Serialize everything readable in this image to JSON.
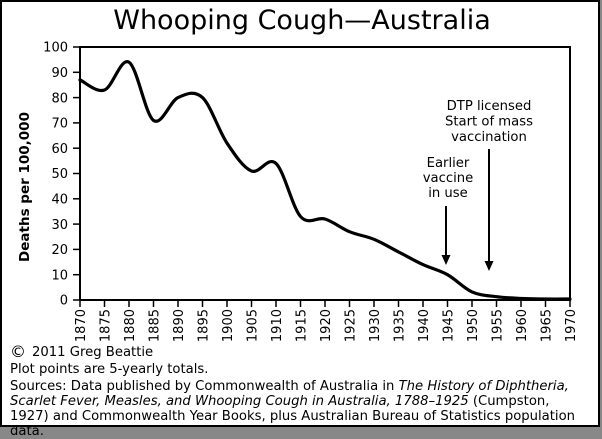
{
  "title": "Whooping Cough—Australia",
  "chart_data": {
    "type": "line",
    "title": "Whooping Cough—Australia",
    "xlabel": "",
    "ylabel": "Deaths per 100,000",
    "xlim": [
      1870,
      1970
    ],
    "ylim": [
      0,
      100
    ],
    "grid": false,
    "legend": "none",
    "line_color": "#000000",
    "background": "#ffffff",
    "x": [
      1870,
      1875,
      1880,
      1885,
      1890,
      1895,
      1900,
      1905,
      1910,
      1915,
      1920,
      1925,
      1930,
      1935,
      1940,
      1945,
      1950,
      1955,
      1960,
      1965,
      1970
    ],
    "values": [
      87,
      83,
      94,
      71,
      80,
      80,
      62,
      51,
      54,
      33,
      32,
      27,
      24,
      19,
      14,
      10,
      3.2,
      1.3,
      0.6,
      0.4,
      0.4
    ],
    "y_ticks": [
      0,
      10,
      20,
      30,
      40,
      50,
      60,
      70,
      80,
      90,
      100
    ],
    "annotations": [
      {
        "name": "dtp-licensed",
        "lines": [
          "DTP licensed",
          "Start of mass",
          "vaccination"
        ],
        "x": 487,
        "first_baseline": 108,
        "line_step": 15.5,
        "arrow_x": 487,
        "arrow_y1": 147,
        "arrow_y2": 269
      },
      {
        "name": "earlier-vaccine",
        "lines": [
          "Earlier",
          "vaccine",
          "in use"
        ],
        "x": 446,
        "first_baseline": 165,
        "line_step": 15,
        "arrow_x": 444,
        "arrow_y1": 204,
        "arrow_y2": 263
      }
    ]
  },
  "footer": {
    "copyright_symbol": "©",
    "copyright_text": "2011 Greg Beattie",
    "note": "Plot points are 5-yearly totals.",
    "sources_segments": [
      {
        "text": "Sources: Data published by Commonwealth of Australia in ",
        "italic": false
      },
      {
        "text": "The History of Diphtheria, Scarlet Fever, Measles, and Whooping Cough in Australia, 1788–1925",
        "italic": true
      },
      {
        "text": " (Cumpston, 1927) and Commonwealth Year Books, plus Australian Bureau of Statistics population data.",
        "italic": false
      }
    ]
  }
}
